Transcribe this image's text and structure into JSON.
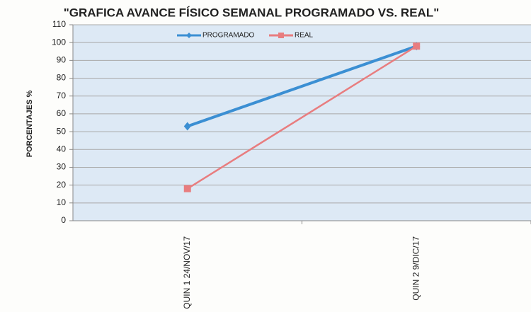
{
  "chart_data": {
    "type": "line",
    "title": "\"GRAFICA AVANCE FÍSICO SEMANAL PROGRAMADO VS. REAL\"",
    "y_label": "PORCENTAJES %",
    "categories": [
      "QUIN 1 24/NOV/17",
      "QUIN 2 9/DIC/17"
    ],
    "series": [
      {
        "name": "PROGRAMADO",
        "color": "#3b8fd3",
        "values": [
          53,
          98
        ]
      },
      {
        "name": "REAL",
        "color": "#e87d7f",
        "values": [
          18,
          98
        ]
      }
    ],
    "ylim": [
      0,
      110
    ],
    "yticks": [
      0,
      10,
      20,
      30,
      40,
      50,
      60,
      70,
      80,
      90,
      100,
      110
    ],
    "grid": true,
    "legend": "top"
  }
}
